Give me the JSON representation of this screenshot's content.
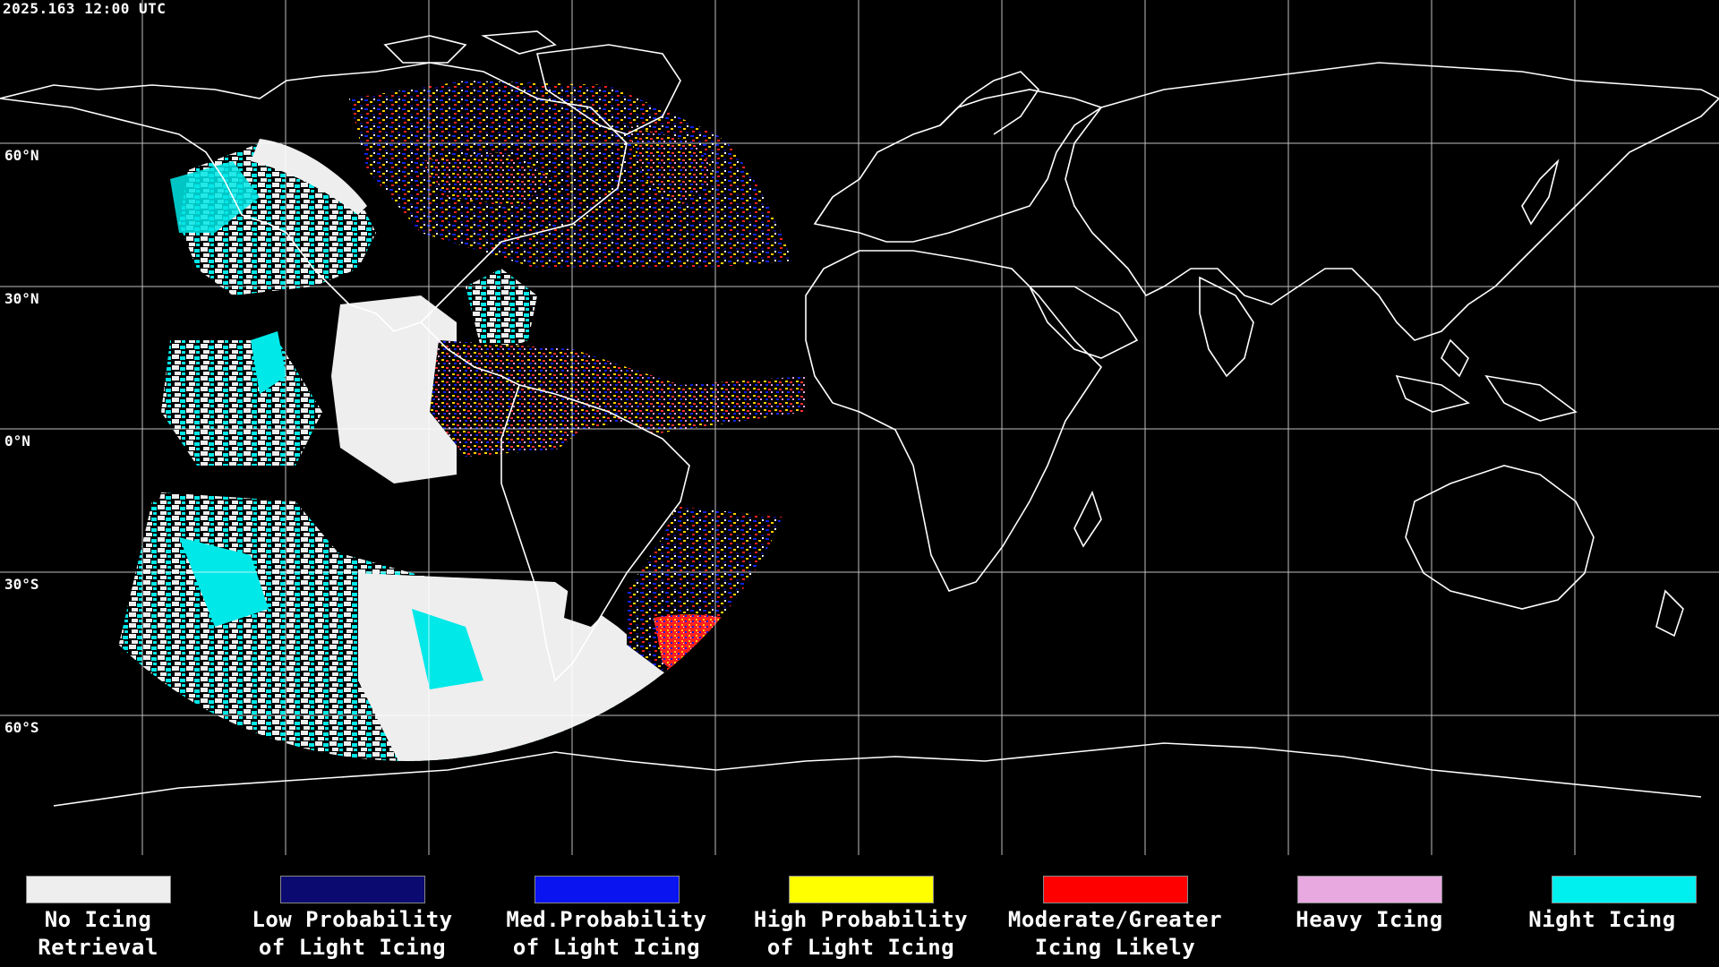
{
  "header": {
    "timestamp": "2025.163 12:00 UTC"
  },
  "map": {
    "latitude_labels": [
      "60°N",
      "30°N",
      "0°N",
      "30°S",
      "60°S"
    ]
  },
  "legend": [
    {
      "line1": "No Icing",
      "line2": "Retrieval",
      "color": "#EEEEEE"
    },
    {
      "line1": "Low Probability",
      "line2": "of Light Icing",
      "color": "#0A0A70"
    },
    {
      "line1": "Med.Probability",
      "line2": "of Light Icing",
      "color": "#0A14F0"
    },
    {
      "line1": "High Probability",
      "line2": "of Light Icing",
      "color": "#FFFF00"
    },
    {
      "line1": "Moderate/Greater",
      "line2": "Icing Likely",
      "color": "#FF0000"
    },
    {
      "line1": "Heavy Icing",
      "line2": "",
      "color": "#E8A8E0"
    },
    {
      "line1": "Night Icing",
      "line2": "",
      "color": "#00F0F0"
    }
  ]
}
